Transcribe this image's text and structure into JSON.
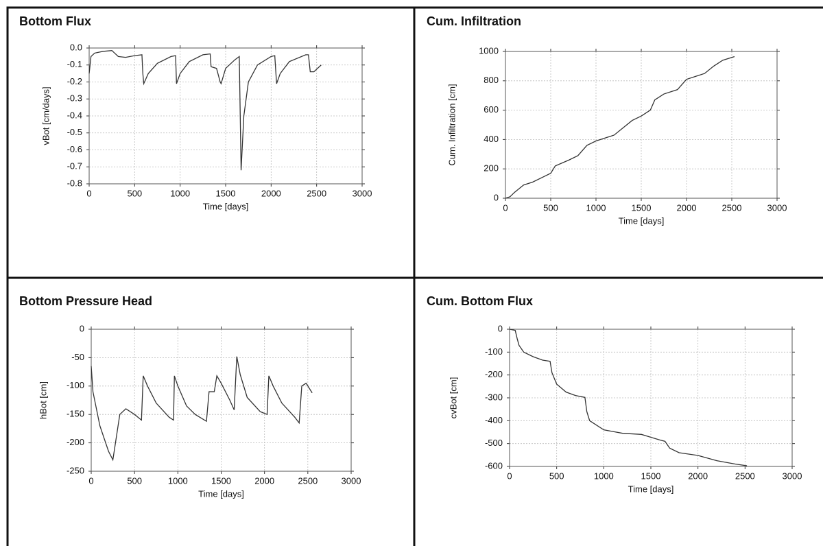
{
  "chart_data": [
    {
      "type": "line",
      "title": "Bottom Flux",
      "x_label": "Time [days]",
      "y_label": "vBot [cm/days]",
      "color": "#333333",
      "grid": true,
      "xlim": [
        0,
        3000
      ],
      "xticks": [
        0,
        500,
        1000,
        1500,
        2000,
        2500,
        3000
      ],
      "ylim": [
        -0.8,
        0
      ],
      "yticks": [
        {
          "value": 0,
          "label": "0.0"
        },
        -0.1,
        -0.2,
        -0.3,
        -0.4,
        -0.5,
        -0.6,
        -0.7,
        -0.8
      ],
      "x": [
        0,
        20,
        60,
        150,
        250,
        280,
        320,
        400,
        500,
        580,
        590,
        600,
        650,
        750,
        900,
        950,
        960,
        1000,
        1100,
        1250,
        1330,
        1340,
        1400,
        1440,
        1450,
        1500,
        1600,
        1650,
        1670,
        1700,
        1750,
        1850,
        2000,
        2040,
        2060,
        2100,
        2200,
        2380,
        2410,
        2430,
        2470,
        2550
      ],
      "values": [
        -0.15,
        -0.05,
        -0.03,
        -0.02,
        -0.015,
        -0.03,
        -0.05,
        -0.055,
        -0.045,
        -0.04,
        -0.15,
        -0.21,
        -0.15,
        -0.09,
        -0.05,
        -0.045,
        -0.21,
        -0.15,
        -0.08,
        -0.04,
        -0.035,
        -0.11,
        -0.12,
        -0.2,
        -0.21,
        -0.12,
        -0.07,
        -0.05,
        -0.72,
        -0.4,
        -0.2,
        -0.1,
        -0.05,
        -0.045,
        -0.21,
        -0.15,
        -0.08,
        -0.04,
        -0.04,
        -0.14,
        -0.14,
        -0.1
      ]
    },
    {
      "type": "line",
      "title": "Cum. Infiltration",
      "x_label": "Time [days]",
      "y_label": "Cum. Infiltration [cm]",
      "color": "#333333",
      "grid": true,
      "xlim": [
        0,
        3000
      ],
      "xticks": [
        0,
        500,
        1000,
        1500,
        2000,
        2500,
        3000
      ],
      "ylim": [
        0,
        1000
      ],
      "yticks": [
        0,
        200,
        400,
        600,
        800,
        1000
      ],
      "x": [
        0,
        50,
        100,
        200,
        300,
        400,
        500,
        550,
        700,
        800,
        900,
        1000,
        1100,
        1200,
        1300,
        1400,
        1500,
        1600,
        1650,
        1750,
        1900,
        2000,
        2100,
        2200,
        2300,
        2400,
        2530
      ],
      "values": [
        0,
        10,
        40,
        90,
        110,
        140,
        170,
        220,
        260,
        290,
        360,
        390,
        410,
        430,
        480,
        530,
        560,
        600,
        670,
        710,
        740,
        810,
        830,
        850,
        900,
        940,
        965
      ]
    },
    {
      "type": "line",
      "title": "Bottom Pressure Head",
      "x_label": "Time [days]",
      "y_label": "hBot [cm]",
      "color": "#333333",
      "grid": true,
      "xlim": [
        0,
        3000
      ],
      "xticks": [
        0,
        500,
        1000,
        1500,
        2000,
        2500,
        3000
      ],
      "ylim": [
        -250,
        0
      ],
      "yticks": [
        0,
        -50,
        -100,
        -150,
        -200,
        -250
      ],
      "x": [
        0,
        20,
        100,
        200,
        250,
        280,
        330,
        400,
        500,
        580,
        600,
        650,
        750,
        900,
        950,
        960,
        1000,
        1100,
        1200,
        1330,
        1360,
        1420,
        1450,
        1500,
        1600,
        1650,
        1680,
        1720,
        1800,
        1950,
        2030,
        2050,
        2100,
        2200,
        2350,
        2400,
        2430,
        2480,
        2550
      ],
      "values": [
        -65,
        -110,
        -170,
        -215,
        -230,
        -200,
        -150,
        -140,
        -150,
        -160,
        -82,
        -100,
        -130,
        -155,
        -160,
        -82,
        -100,
        -135,
        -150,
        -162,
        -110,
        -110,
        -82,
        -95,
        -125,
        -142,
        -48,
        -80,
        -120,
        -145,
        -150,
        -82,
        -100,
        -130,
        -155,
        -165,
        -100,
        -95,
        -112
      ]
    },
    {
      "type": "line",
      "title": "Cum. Bottom Flux",
      "x_label": "Time [days]",
      "y_label": "cvBot [cm]",
      "color": "#333333",
      "grid": true,
      "xlim": [
        0,
        3000
      ],
      "xticks": [
        0,
        500,
        1000,
        1500,
        2000,
        2500,
        3000
      ],
      "ylim": [
        -600,
        0
      ],
      "yticks": [
        0,
        -100,
        -200,
        -300,
        -400,
        -500,
        -600
      ],
      "x": [
        0,
        60,
        80,
        100,
        150,
        250,
        350,
        430,
        450,
        500,
        600,
        700,
        800,
        820,
        850,
        1000,
        1200,
        1400,
        1600,
        1650,
        1700,
        1800,
        2000,
        2200,
        2400,
        2520
      ],
      "values": [
        0,
        -5,
        -40,
        -70,
        -100,
        -120,
        -135,
        -140,
        -190,
        -240,
        -275,
        -290,
        -298,
        -360,
        -400,
        -440,
        -455,
        -460,
        -485,
        -490,
        -520,
        -540,
        -552,
        -575,
        -590,
        -597
      ]
    }
  ]
}
